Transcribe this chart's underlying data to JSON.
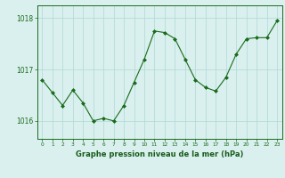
{
  "x": [
    0,
    1,
    2,
    3,
    4,
    5,
    6,
    7,
    8,
    9,
    10,
    11,
    12,
    13,
    14,
    15,
    16,
    17,
    18,
    19,
    20,
    21,
    22,
    23
  ],
  "y": [
    1016.8,
    1016.55,
    1016.3,
    1016.6,
    1016.35,
    1016.0,
    1016.05,
    1016.0,
    1016.3,
    1016.75,
    1017.2,
    1017.75,
    1017.72,
    1017.6,
    1017.2,
    1016.8,
    1016.65,
    1016.58,
    1016.85,
    1017.3,
    1017.6,
    1017.62,
    1017.62,
    1017.95
  ],
  "line_color": "#1a6b1a",
  "marker_color": "#1a6b1a",
  "bg_color": "#d9f0ef",
  "grid_color": "#b0d8d5",
  "xlabel": "Graphe pression niveau de la mer (hPa)",
  "xlabel_color": "#1a5c1a",
  "tick_color": "#1a6b1a",
  "ylim": [
    1015.65,
    1018.25
  ],
  "yticks": [
    1016,
    1017,
    1018
  ],
  "xlim": [
    -0.5,
    23.5
  ],
  "xticks": [
    0,
    1,
    2,
    3,
    4,
    5,
    6,
    7,
    8,
    9,
    10,
    11,
    12,
    13,
    14,
    15,
    16,
    17,
    18,
    19,
    20,
    21,
    22,
    23
  ]
}
